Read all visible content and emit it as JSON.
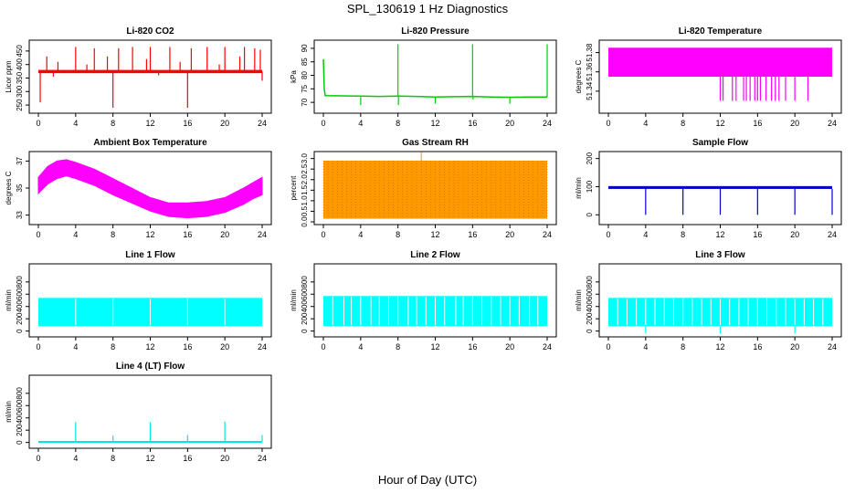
{
  "page": {
    "title": "SPL_130619  1 Hz Diagnostics",
    "xlabel": "Hour of Day (UTC)"
  },
  "chart_data": [
    {
      "type": "line",
      "title": "Li-820 CO2",
      "ylabel": "Licor ppm",
      "color": "#ff0000",
      "xlim": [
        0,
        24
      ],
      "xticks": [
        0,
        4,
        8,
        12,
        16,
        20,
        24
      ],
      "ylim": [
        230,
        480
      ],
      "yticks": [
        250,
        300,
        350,
        400,
        450
      ],
      "band": {
        "low": 368,
        "high": 380
      },
      "spikes": [
        {
          "x": 0.2,
          "y": 260
        },
        {
          "x": 0.9,
          "y": 430
        },
        {
          "x": 1.6,
          "y": 355
        },
        {
          "x": 2.1,
          "y": 410
        },
        {
          "x": 4.0,
          "y": 465
        },
        {
          "x": 5.2,
          "y": 400
        },
        {
          "x": 6.0,
          "y": 460
        },
        {
          "x": 7.4,
          "y": 430
        },
        {
          "x": 8.0,
          "y": 240
        },
        {
          "x": 8.6,
          "y": 460
        },
        {
          "x": 10.1,
          "y": 465
        },
        {
          "x": 11.6,
          "y": 420
        },
        {
          "x": 12.0,
          "y": 465
        },
        {
          "x": 12.9,
          "y": 360
        },
        {
          "x": 14.1,
          "y": 465
        },
        {
          "x": 15.2,
          "y": 410
        },
        {
          "x": 16.0,
          "y": 240
        },
        {
          "x": 16.4,
          "y": 460
        },
        {
          "x": 18.1,
          "y": 465
        },
        {
          "x": 19.4,
          "y": 400
        },
        {
          "x": 20.0,
          "y": 465
        },
        {
          "x": 21.6,
          "y": 430
        },
        {
          "x": 22.1,
          "y": 465
        },
        {
          "x": 23.2,
          "y": 460
        },
        {
          "x": 23.8,
          "y": 455
        },
        {
          "x": 24.0,
          "y": 340
        }
      ]
    },
    {
      "type": "line",
      "title": "Li-820 Pressure",
      "ylabel": "kPa",
      "color": "#00cc00",
      "xlim": [
        0,
        24
      ],
      "xticks": [
        0,
        4,
        8,
        12,
        16,
        20,
        24
      ],
      "ylim": [
        67,
        92
      ],
      "yticks": [
        70,
        75,
        80,
        85,
        90
      ],
      "points": [
        {
          "x": 0,
          "y": 86
        },
        {
          "x": 0.1,
          "y": 75
        },
        {
          "x": 0.2,
          "y": 72.5
        },
        {
          "x": 2,
          "y": 72.4
        },
        {
          "x": 4,
          "y": 72.3
        },
        {
          "x": 6,
          "y": 72.2
        },
        {
          "x": 8,
          "y": 72.3
        },
        {
          "x": 10,
          "y": 72.2
        },
        {
          "x": 12,
          "y": 72.0
        },
        {
          "x": 14,
          "y": 72.1
        },
        {
          "x": 16,
          "y": 72.2
        },
        {
          "x": 18,
          "y": 72.0
        },
        {
          "x": 20,
          "y": 71.9
        },
        {
          "x": 22,
          "y": 72.0
        },
        {
          "x": 24,
          "y": 72.0
        }
      ],
      "spikes": [
        {
          "x": 4.0,
          "y": 69
        },
        {
          "x": 8.0,
          "y": 91.5
        },
        {
          "x": 8.05,
          "y": 69
        },
        {
          "x": 12.0,
          "y": 69.5
        },
        {
          "x": 16.0,
          "y": 91.5
        },
        {
          "x": 16.05,
          "y": 71
        },
        {
          "x": 20.0,
          "y": 69.5
        },
        {
          "x": 24.0,
          "y": 91.5
        }
      ]
    },
    {
      "type": "area",
      "title": "Li-820 Temperature",
      "ylabel": "degrees C",
      "color": "#ff00ff",
      "xlim": [
        0,
        24
      ],
      "xticks": [
        0,
        4,
        8,
        12,
        16,
        20,
        24
      ],
      "ylim": [
        51.32,
        51.39
      ],
      "yticks": [
        51.34,
        51.36,
        51.38
      ],
      "band": {
        "low": 51.355,
        "high": 51.385
      },
      "dips": [
        {
          "x": 12.0,
          "y": 51.33
        },
        {
          "x": 12.3,
          "y": 51.33
        },
        {
          "x": 13.3,
          "y": 51.33
        },
        {
          "x": 13.7,
          "y": 51.33
        },
        {
          "x": 14.5,
          "y": 51.33
        },
        {
          "x": 14.8,
          "y": 51.33
        },
        {
          "x": 15.2,
          "y": 51.33
        },
        {
          "x": 15.7,
          "y": 51.33
        },
        {
          "x": 16.0,
          "y": 51.33
        },
        {
          "x": 16.3,
          "y": 51.33
        },
        {
          "x": 16.9,
          "y": 51.33
        },
        {
          "x": 17.5,
          "y": 51.33
        },
        {
          "x": 17.9,
          "y": 51.33
        },
        {
          "x": 18.3,
          "y": 51.33
        },
        {
          "x": 19.0,
          "y": 51.33
        },
        {
          "x": 20.0,
          "y": 51.33
        },
        {
          "x": 21.4,
          "y": 51.33
        }
      ]
    },
    {
      "type": "area",
      "title": "Ambient Box Temperature",
      "ylabel": "degrees C",
      "color": "#ff00ff",
      "xlim": [
        0,
        24
      ],
      "xticks": [
        0,
        4,
        8,
        12,
        16,
        20,
        24
      ],
      "ylim": [
        32.5,
        37.5
      ],
      "yticks": [
        33,
        35,
        37
      ],
      "upper": [
        {
          "x": 0,
          "y": 35.8
        },
        {
          "x": 1,
          "y": 36.6
        },
        {
          "x": 2,
          "y": 37.0
        },
        {
          "x": 3,
          "y": 37.1
        },
        {
          "x": 4,
          "y": 36.9
        },
        {
          "x": 6,
          "y": 36.4
        },
        {
          "x": 8,
          "y": 35.7
        },
        {
          "x": 10,
          "y": 35.0
        },
        {
          "x": 12,
          "y": 34.3
        },
        {
          "x": 14,
          "y": 33.9
        },
        {
          "x": 16,
          "y": 33.9
        },
        {
          "x": 18,
          "y": 34.0
        },
        {
          "x": 20,
          "y": 34.3
        },
        {
          "x": 22,
          "y": 35.0
        },
        {
          "x": 23,
          "y": 35.4
        },
        {
          "x": 24,
          "y": 35.8
        }
      ],
      "lower": [
        {
          "x": 0,
          "y": 34.6
        },
        {
          "x": 1,
          "y": 35.3
        },
        {
          "x": 2,
          "y": 35.7
        },
        {
          "x": 3,
          "y": 35.9
        },
        {
          "x": 4,
          "y": 35.7
        },
        {
          "x": 6,
          "y": 35.2
        },
        {
          "x": 8,
          "y": 34.5
        },
        {
          "x": 10,
          "y": 33.9
        },
        {
          "x": 12,
          "y": 33.3
        },
        {
          "x": 14,
          "y": 32.9
        },
        {
          "x": 16,
          "y": 32.8
        },
        {
          "x": 18,
          "y": 32.9
        },
        {
          "x": 20,
          "y": 33.2
        },
        {
          "x": 22,
          "y": 33.8
        },
        {
          "x": 23,
          "y": 34.2
        },
        {
          "x": 24,
          "y": 34.5
        }
      ]
    },
    {
      "type": "area",
      "title": "Gas Stream RH",
      "ylabel": "percent",
      "color": "#ff9900",
      "color2": "#cc6600",
      "xlim": [
        0,
        24
      ],
      "xticks": [
        0,
        4,
        8,
        12,
        16,
        20,
        24
      ],
      "ylim": [
        0,
        3.2
      ],
      "yticks": [
        0.0,
        0.5,
        1.0,
        1.5,
        2.0,
        2.5,
        3.0
      ],
      "band": {
        "low": 0.15,
        "high": 2.9
      },
      "peak": {
        "x": 10.5,
        "y": 3.3
      }
    },
    {
      "type": "line",
      "title": "Sample Flow",
      "ylabel": "ml/min",
      "color": "#0000cc",
      "xlim": [
        0,
        24
      ],
      "xticks": [
        0,
        4,
        8,
        12,
        16,
        20,
        24
      ],
      "ylim": [
        -25,
        215
      ],
      "yticks": [
        0,
        100,
        200
      ],
      "band": {
        "low": 92,
        "high": 102
      },
      "dips": [
        {
          "x": 4.0,
          "y": 0
        },
        {
          "x": 8.0,
          "y": 0
        },
        {
          "x": 12.0,
          "y": 0
        },
        {
          "x": 16.0,
          "y": 0
        },
        {
          "x": 20.0,
          "y": 0
        },
        {
          "x": 24.0,
          "y": 0
        }
      ]
    },
    {
      "type": "area",
      "title": "Line 1 Flow",
      "ylabel": "ml/min",
      "color": "#00ffff",
      "xlim": [
        0,
        24
      ],
      "xticks": [
        0,
        4,
        8,
        12,
        16,
        20,
        24
      ],
      "ylim": [
        -50,
        1050
      ],
      "yticks": [
        0,
        200,
        400,
        600,
        800
      ],
      "band": {
        "low": 80,
        "high": 540
      },
      "gaps": [
        4.0,
        8.0,
        12.0,
        16.0,
        20.0
      ]
    },
    {
      "type": "area",
      "title": "Line 2 Flow",
      "ylabel": "ml/min",
      "color": "#00ffff",
      "xlim": [
        0,
        24
      ],
      "xticks": [
        0,
        4,
        8,
        12,
        16,
        20,
        24
      ],
      "ylim": [
        -50,
        1050
      ],
      "yticks": [
        0,
        200,
        400,
        600,
        800
      ],
      "band": {
        "low": 80,
        "high": 570
      },
      "gaps": [
        1.0,
        2.2,
        3.0,
        4.0,
        5.1,
        6.0,
        7.0,
        8.0,
        9.1,
        10.0,
        11.0,
        12.0,
        13.0,
        14.2,
        15.0,
        16.0,
        17.0,
        18.0,
        19.0,
        20.0,
        21.0,
        22.1,
        23.0
      ]
    },
    {
      "type": "area",
      "title": "Line 3 Flow",
      "ylabel": "ml/min",
      "color": "#00ffff",
      "xlim": [
        0,
        24
      ],
      "xticks": [
        0,
        4,
        8,
        12,
        16,
        20,
        24
      ],
      "ylim": [
        -50,
        1050
      ],
      "yticks": [
        0,
        200,
        400,
        600,
        800
      ],
      "band": {
        "low": 80,
        "high": 540
      },
      "gaps": [
        1.0,
        2.0,
        3.0,
        4.0,
        5.0,
        6.0,
        7.0,
        8.0,
        9.0,
        10.0,
        11.0,
        12.0,
        13.0,
        14.0,
        15.0,
        16.0,
        17.0,
        18.0,
        19.0,
        20.0,
        21.0,
        22.0,
        23.0
      ],
      "dips": [
        4.0,
        12.0,
        20.0
      ]
    },
    {
      "type": "line",
      "title": "Line 4 (LT) Flow",
      "ylabel": "ml/min",
      "color": "#00e5e5",
      "xlim": [
        0,
        24
      ],
      "xticks": [
        0,
        4,
        8,
        12,
        16,
        20,
        24
      ],
      "ylim": [
        -50,
        1050
      ],
      "yticks": [
        0,
        200,
        400,
        600,
        800
      ],
      "baseline": 10,
      "spikes": [
        {
          "x": 4.0,
          "y": 330
        },
        {
          "x": 8.0,
          "y": 110
        },
        {
          "x": 12.0,
          "y": 330
        },
        {
          "x": 16.0,
          "y": 120
        },
        {
          "x": 20.0,
          "y": 340
        },
        {
          "x": 24.0,
          "y": 120
        }
      ]
    }
  ]
}
